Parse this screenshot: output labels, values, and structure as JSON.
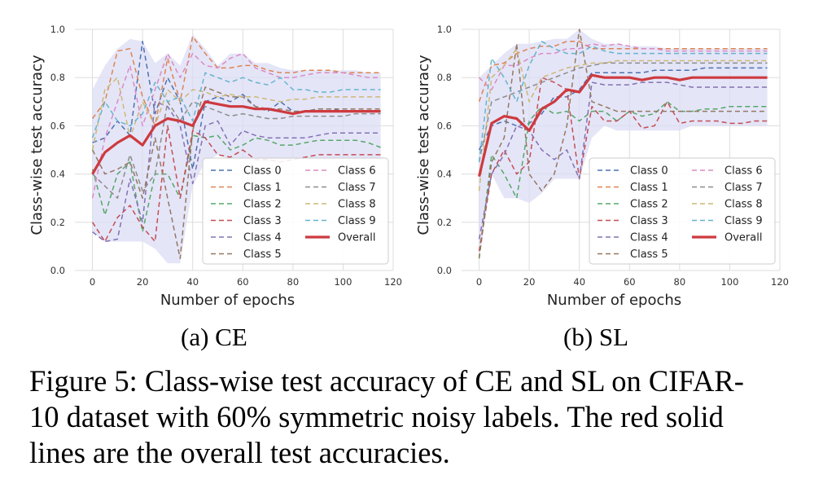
{
  "colors": {
    "classes": [
      "#4c72b0",
      "#dd8452",
      "#55a868",
      "#c44e52",
      "#8172b3",
      "#937860",
      "#da8bc3",
      "#8c8c8c",
      "#ccb974",
      "#64b5cd"
    ],
    "overall": "#cd3a3f",
    "band": "#dcdcf5",
    "plot_bg": "#ffffff",
    "grid": "#dddddd"
  },
  "chart_data": [
    {
      "id": "ce",
      "type": "line",
      "xlabel": "Number of epochs",
      "ylabel": "Class-wise test accuracy",
      "xlim": [
        -7,
        120
      ],
      "ylim": [
        0.0,
        1.0
      ],
      "xticks": [
        0,
        20,
        40,
        60,
        80,
        100,
        120
      ],
      "yticks": [
        0.0,
        0.2,
        0.4,
        0.6,
        0.8,
        1.0
      ],
      "x": [
        0,
        5,
        10,
        15,
        20,
        25,
        30,
        35,
        40,
        45,
        50,
        55,
        60,
        65,
        70,
        75,
        80,
        85,
        90,
        95,
        100,
        105,
        110,
        115
      ],
      "band_upper": [
        0.75,
        0.85,
        0.92,
        0.96,
        0.95,
        0.86,
        0.9,
        0.85,
        0.98,
        0.92,
        0.85,
        0.9,
        0.9,
        0.86,
        0.86,
        0.84,
        0.83,
        0.83,
        0.83,
        0.83,
        0.83,
        0.83,
        0.82,
        0.82
      ],
      "band_lower": [
        0.16,
        0.12,
        0.12,
        0.12,
        0.12,
        0.09,
        0.03,
        0.03,
        0.35,
        0.45,
        0.48,
        0.46,
        0.46,
        0.45,
        0.45,
        0.45,
        0.46,
        0.46,
        0.46,
        0.46,
        0.46,
        0.46,
        0.46,
        0.46
      ],
      "series": [
        {
          "name": "Class 0",
          "values": [
            0.53,
            0.55,
            0.62,
            0.56,
            0.95,
            0.65,
            0.8,
            0.7,
            0.42,
            0.7,
            0.72,
            0.7,
            0.73,
            0.68,
            0.66,
            0.7,
            0.66,
            0.66,
            0.67,
            0.67,
            0.66,
            0.66,
            0.66,
            0.66
          ]
        },
        {
          "name": "Class 1",
          "values": [
            0.63,
            0.7,
            0.91,
            0.92,
            0.72,
            0.6,
            0.88,
            0.7,
            0.97,
            0.9,
            0.84,
            0.84,
            0.85,
            0.85,
            0.83,
            0.82,
            0.82,
            0.83,
            0.83,
            0.83,
            0.82,
            0.82,
            0.82,
            0.82
          ]
        },
        {
          "name": "Class 2",
          "values": [
            0.42,
            0.23,
            0.4,
            0.45,
            0.16,
            0.4,
            0.4,
            0.3,
            0.56,
            0.55,
            0.56,
            0.5,
            0.52,
            0.55,
            0.54,
            0.52,
            0.52,
            0.53,
            0.54,
            0.54,
            0.54,
            0.54,
            0.53,
            0.51
          ]
        },
        {
          "name": "Class 3",
          "values": [
            0.2,
            0.12,
            0.22,
            0.27,
            0.18,
            0.12,
            0.6,
            0.3,
            0.58,
            0.55,
            0.48,
            0.47,
            0.5,
            0.46,
            0.46,
            0.45,
            0.46,
            0.47,
            0.48,
            0.48,
            0.48,
            0.48,
            0.48,
            0.48
          ]
        },
        {
          "name": "Class 4",
          "values": [
            0.16,
            0.12,
            0.13,
            0.38,
            0.2,
            0.7,
            0.68,
            0.6,
            0.36,
            0.6,
            0.62,
            0.52,
            0.58,
            0.56,
            0.55,
            0.55,
            0.55,
            0.55,
            0.56,
            0.57,
            0.57,
            0.57,
            0.57,
            0.57
          ]
        },
        {
          "name": "Class 5",
          "values": [
            0.5,
            0.4,
            0.42,
            0.45,
            0.3,
            0.55,
            0.3,
            0.05,
            0.58,
            0.76,
            0.74,
            0.72,
            0.72,
            0.68,
            0.67,
            0.67,
            0.66,
            0.66,
            0.67,
            0.67,
            0.67,
            0.67,
            0.67,
            0.67
          ]
        },
        {
          "name": "Class 6",
          "values": [
            0.3,
            0.55,
            0.7,
            0.85,
            0.6,
            0.75,
            0.9,
            0.8,
            0.9,
            0.85,
            0.84,
            0.88,
            0.9,
            0.84,
            0.82,
            0.8,
            0.8,
            0.81,
            0.82,
            0.82,
            0.82,
            0.81,
            0.8,
            0.8
          ]
        },
        {
          "name": "Class 7",
          "values": [
            0.4,
            0.35,
            0.3,
            0.48,
            0.33,
            0.4,
            0.7,
            0.62,
            0.7,
            0.68,
            0.66,
            0.64,
            0.65,
            0.64,
            0.63,
            0.63,
            0.64,
            0.64,
            0.64,
            0.64,
            0.64,
            0.65,
            0.65,
            0.65
          ]
        },
        {
          "name": "Class 8",
          "values": [
            0.5,
            0.75,
            0.8,
            0.55,
            0.7,
            0.6,
            0.75,
            0.7,
            0.75,
            0.74,
            0.72,
            0.73,
            0.72,
            0.72,
            0.71,
            0.7,
            0.71,
            0.71,
            0.72,
            0.72,
            0.72,
            0.72,
            0.72,
            0.72
          ]
        },
        {
          "name": "Class 9",
          "values": [
            0.55,
            0.7,
            0.62,
            0.6,
            0.65,
            0.78,
            0.7,
            0.72,
            0.62,
            0.82,
            0.8,
            0.78,
            0.8,
            0.78,
            0.77,
            0.8,
            0.75,
            0.75,
            0.74,
            0.74,
            0.75,
            0.75,
            0.75,
            0.75
          ]
        },
        {
          "name": "Overall",
          "values": [
            0.4,
            0.49,
            0.53,
            0.56,
            0.52,
            0.6,
            0.63,
            0.62,
            0.6,
            0.7,
            0.69,
            0.68,
            0.68,
            0.67,
            0.67,
            0.66,
            0.65,
            0.66,
            0.66,
            0.66,
            0.66,
            0.66,
            0.66,
            0.66
          ]
        }
      ],
      "legend_location": "lower right"
    },
    {
      "id": "sl",
      "type": "line",
      "xlabel": "Number of epochs",
      "ylabel": "Class-wise test accuracy",
      "xlim": [
        -7,
        120
      ],
      "ylim": [
        0.0,
        1.0
      ],
      "xticks": [
        0,
        20,
        40,
        60,
        80,
        100,
        120
      ],
      "yticks": [
        0.0,
        0.2,
        0.4,
        0.6,
        0.8,
        1.0
      ],
      "x": [
        0,
        5,
        10,
        15,
        20,
        25,
        30,
        35,
        40,
        45,
        50,
        55,
        60,
        65,
        70,
        75,
        80,
        85,
        90,
        95,
        100,
        105,
        110,
        115
      ],
      "band_upper": [
        0.8,
        0.85,
        0.9,
        0.94,
        0.94,
        0.95,
        0.96,
        0.96,
        1.0,
        0.96,
        0.94,
        0.94,
        0.93,
        0.93,
        0.93,
        0.92,
        0.92,
        0.92,
        0.92,
        0.92,
        0.92,
        0.92,
        0.92,
        0.92
      ],
      "band_lower": [
        0.04,
        0.4,
        0.3,
        0.3,
        0.28,
        0.32,
        0.38,
        0.38,
        0.38,
        0.55,
        0.6,
        0.58,
        0.58,
        0.58,
        0.58,
        0.58,
        0.58,
        0.6,
        0.6,
        0.6,
        0.6,
        0.6,
        0.6,
        0.6
      ],
      "series": [
        {
          "name": "Class 0",
          "values": [
            0.5,
            0.6,
            0.62,
            0.6,
            0.61,
            0.65,
            0.72,
            0.72,
            0.75,
            0.82,
            0.82,
            0.82,
            0.82,
            0.82,
            0.83,
            0.83,
            0.83,
            0.83,
            0.84,
            0.84,
            0.84,
            0.84,
            0.84,
            0.84
          ]
        },
        {
          "name": "Class 1",
          "values": [
            0.7,
            0.85,
            0.86,
            0.9,
            0.92,
            0.93,
            0.93,
            0.95,
            0.95,
            0.92,
            0.92,
            0.92,
            0.92,
            0.92,
            0.92,
            0.92,
            0.92,
            0.92,
            0.92,
            0.92,
            0.92,
            0.92,
            0.92,
            0.92
          ]
        },
        {
          "name": "Class 2",
          "values": [
            0.05,
            0.48,
            0.4,
            0.3,
            0.62,
            0.68,
            0.65,
            0.66,
            0.62,
            0.66,
            0.66,
            0.62,
            0.66,
            0.64,
            0.65,
            0.7,
            0.66,
            0.66,
            0.67,
            0.67,
            0.68,
            0.68,
            0.68,
            0.68
          ]
        },
        {
          "name": "Class 3",
          "values": [
            0.08,
            0.4,
            0.5,
            0.4,
            0.45,
            0.8,
            0.78,
            0.75,
            0.38,
            0.68,
            0.62,
            0.62,
            0.66,
            0.59,
            0.6,
            0.7,
            0.61,
            0.62,
            0.62,
            0.62,
            0.61,
            0.61,
            0.62,
            0.62
          ]
        },
        {
          "name": "Class 4",
          "values": [
            0.13,
            0.4,
            0.48,
            0.6,
            0.58,
            0.5,
            0.46,
            0.5,
            0.38,
            0.78,
            0.77,
            0.77,
            0.77,
            0.78,
            0.78,
            0.78,
            0.77,
            0.76,
            0.76,
            0.76,
            0.76,
            0.76,
            0.76,
            0.76
          ]
        },
        {
          "name": "Class 5",
          "values": [
            0.05,
            0.45,
            0.55,
            0.94,
            0.4,
            0.33,
            0.4,
            0.6,
            1.0,
            0.7,
            0.68,
            0.66,
            0.66,
            0.66,
            0.66,
            0.66,
            0.66,
            0.66,
            0.66,
            0.66,
            0.66,
            0.66,
            0.66,
            0.66
          ]
        },
        {
          "name": "Class 6",
          "values": [
            0.8,
            0.75,
            0.85,
            0.85,
            0.88,
            0.9,
            0.9,
            0.92,
            0.92,
            0.94,
            0.93,
            0.94,
            0.93,
            0.92,
            0.92,
            0.91,
            0.91,
            0.91,
            0.91,
            0.91,
            0.91,
            0.91,
            0.91,
            0.91
          ]
        },
        {
          "name": "Class 7",
          "values": [
            0.45,
            0.7,
            0.72,
            0.74,
            0.76,
            0.78,
            0.8,
            0.82,
            0.84,
            0.85,
            0.86,
            0.86,
            0.86,
            0.86,
            0.86,
            0.86,
            0.86,
            0.86,
            0.86,
            0.86,
            0.86,
            0.86,
            0.86,
            0.86
          ]
        },
        {
          "name": "Class 8",
          "values": [
            0.33,
            0.8,
            0.85,
            0.92,
            0.7,
            0.8,
            0.82,
            0.84,
            0.85,
            0.86,
            0.86,
            0.87,
            0.87,
            0.87,
            0.87,
            0.87,
            0.87,
            0.87,
            0.87,
            0.87,
            0.87,
            0.87,
            0.87,
            0.87
          ]
        },
        {
          "name": "Class 9",
          "values": [
            0.45,
            0.88,
            0.8,
            0.7,
            0.85,
            0.95,
            0.92,
            0.9,
            0.9,
            0.93,
            0.91,
            0.9,
            0.9,
            0.9,
            0.9,
            0.9,
            0.9,
            0.9,
            0.9,
            0.9,
            0.9,
            0.9,
            0.9,
            0.9
          ]
        },
        {
          "name": "Overall",
          "values": [
            0.39,
            0.61,
            0.64,
            0.63,
            0.58,
            0.67,
            0.7,
            0.75,
            0.74,
            0.81,
            0.8,
            0.8,
            0.8,
            0.79,
            0.8,
            0.8,
            0.79,
            0.8,
            0.8,
            0.8,
            0.8,
            0.8,
            0.8,
            0.8
          ]
        }
      ],
      "legend_location": "lower right"
    }
  ],
  "captions": {
    "panel_a": "(a) CE",
    "panel_b": "(b) SL",
    "figure_lines": [
      "Figure 5: Class-wise test accuracy of CE and SL on CIFAR-",
      "10 dataset with 60% symmetric noisy labels. The red solid",
      "lines are the overall test accuracies."
    ]
  }
}
